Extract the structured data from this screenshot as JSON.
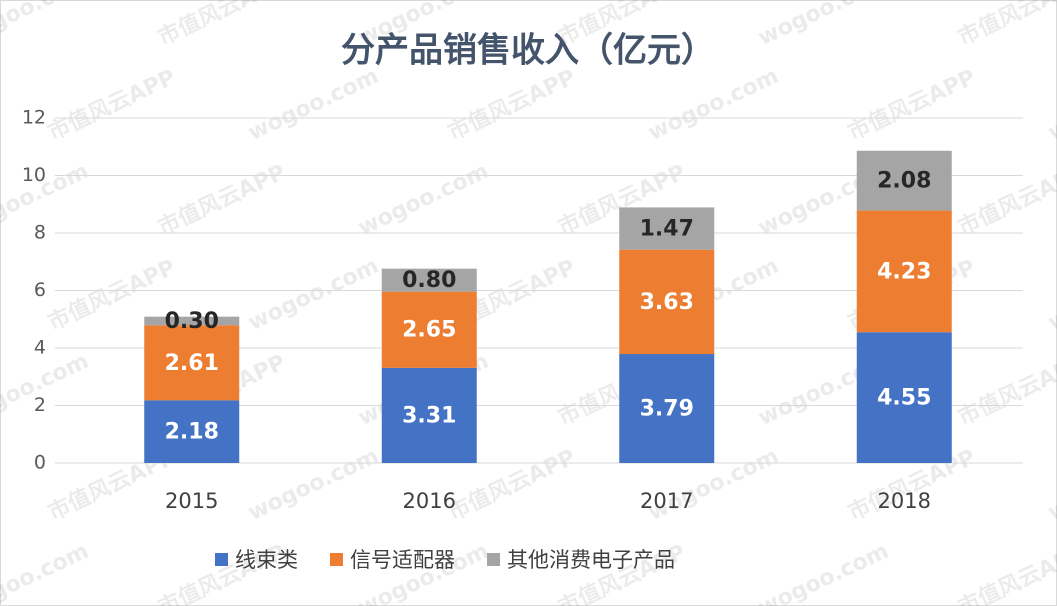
{
  "chart_data": {
    "type": "stacked_bar",
    "title": "分产品销售收入（亿元）",
    "categories": [
      "2015",
      "2016",
      "2017",
      "2018"
    ],
    "series": [
      {
        "name": "线束类",
        "color": "#4472c4",
        "values": [
          2.18,
          3.31,
          3.79,
          4.55
        ],
        "value_labels": [
          "2.18",
          "3.31",
          "3.79",
          "4.55"
        ]
      },
      {
        "name": "信号适配器",
        "color": "#ed7d31",
        "values": [
          2.61,
          2.65,
          3.63,
          4.23
        ],
        "value_labels": [
          "2.61",
          "2.65",
          "3.63",
          "4.23"
        ]
      },
      {
        "name": "其他消费电子产品",
        "color": "#a5a5a5",
        "values": [
          0.3,
          0.8,
          1.47,
          2.08
        ],
        "value_labels": [
          "0.30",
          "0.80",
          "1.47",
          "2.08"
        ]
      }
    ],
    "ylim": [
      0,
      12
    ],
    "yticks": [
      0,
      2,
      4,
      6,
      8,
      10,
      12
    ],
    "grid": true,
    "legend": "bottom",
    "watermark": [
      "wogoo.com",
      "市值风云APP"
    ]
  }
}
